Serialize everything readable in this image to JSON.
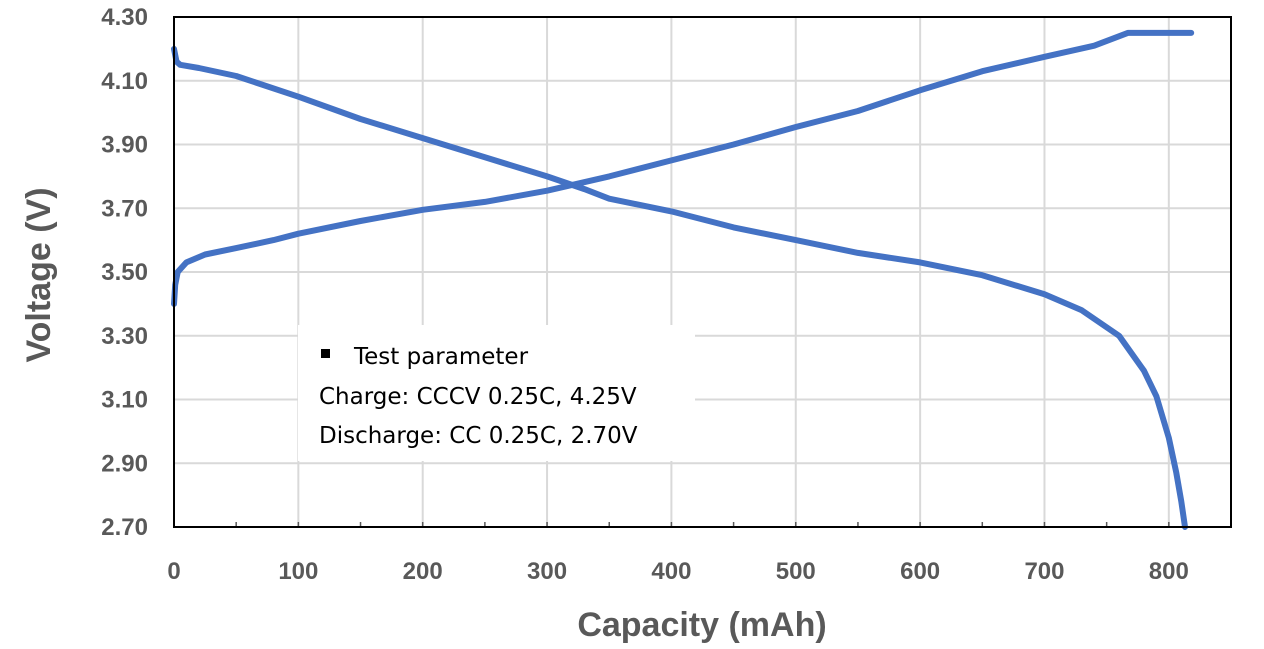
{
  "chart_data": {
    "type": "line",
    "xlabel": "Capacity (mAh)",
    "ylabel": "Voltage (V)",
    "xlim": [
      0,
      850
    ],
    "ylim": [
      2.7,
      4.3
    ],
    "x_ticks": [
      0,
      100,
      200,
      300,
      400,
      500,
      600,
      700,
      800
    ],
    "y_ticks": [
      "2.70",
      "2.90",
      "3.10",
      "3.30",
      "3.50",
      "3.70",
      "3.90",
      "4.10",
      "4.30"
    ],
    "grid": true,
    "line_color": "#4472C4",
    "legend": {
      "position": "center-left",
      "lines": [
        "Test parameter",
        "Charge: CCCV 0.25C, 4.25V",
        "Discharge: CC 0.25C, 2.70V"
      ]
    },
    "series": [
      {
        "x": [
          0,
          1,
          3,
          10,
          25,
          50,
          80,
          100,
          150,
          200,
          250,
          300,
          350,
          400,
          450,
          500,
          550,
          600,
          650,
          700,
          740,
          767,
          790,
          818
        ],
        "y": [
          3.4,
          3.46,
          3.5,
          3.53,
          3.555,
          3.575,
          3.6,
          3.62,
          3.66,
          3.695,
          3.72,
          3.755,
          3.8,
          3.85,
          3.9,
          3.955,
          4.005,
          4.07,
          4.13,
          4.175,
          4.21,
          4.25,
          4.25,
          4.25
        ]
      },
      {
        "x": [
          0,
          2,
          5,
          20,
          50,
          100,
          150,
          200,
          250,
          300,
          330,
          350,
          400,
          450,
          500,
          550,
          600,
          650,
          700,
          730,
          760,
          780,
          790,
          800,
          806,
          810,
          813
        ],
        "y": [
          4.2,
          4.16,
          4.15,
          4.14,
          4.115,
          4.05,
          3.98,
          3.92,
          3.86,
          3.8,
          3.76,
          3.73,
          3.69,
          3.64,
          3.6,
          3.56,
          3.53,
          3.49,
          3.43,
          3.38,
          3.3,
          3.19,
          3.11,
          2.98,
          2.87,
          2.78,
          2.7
        ]
      }
    ]
  }
}
